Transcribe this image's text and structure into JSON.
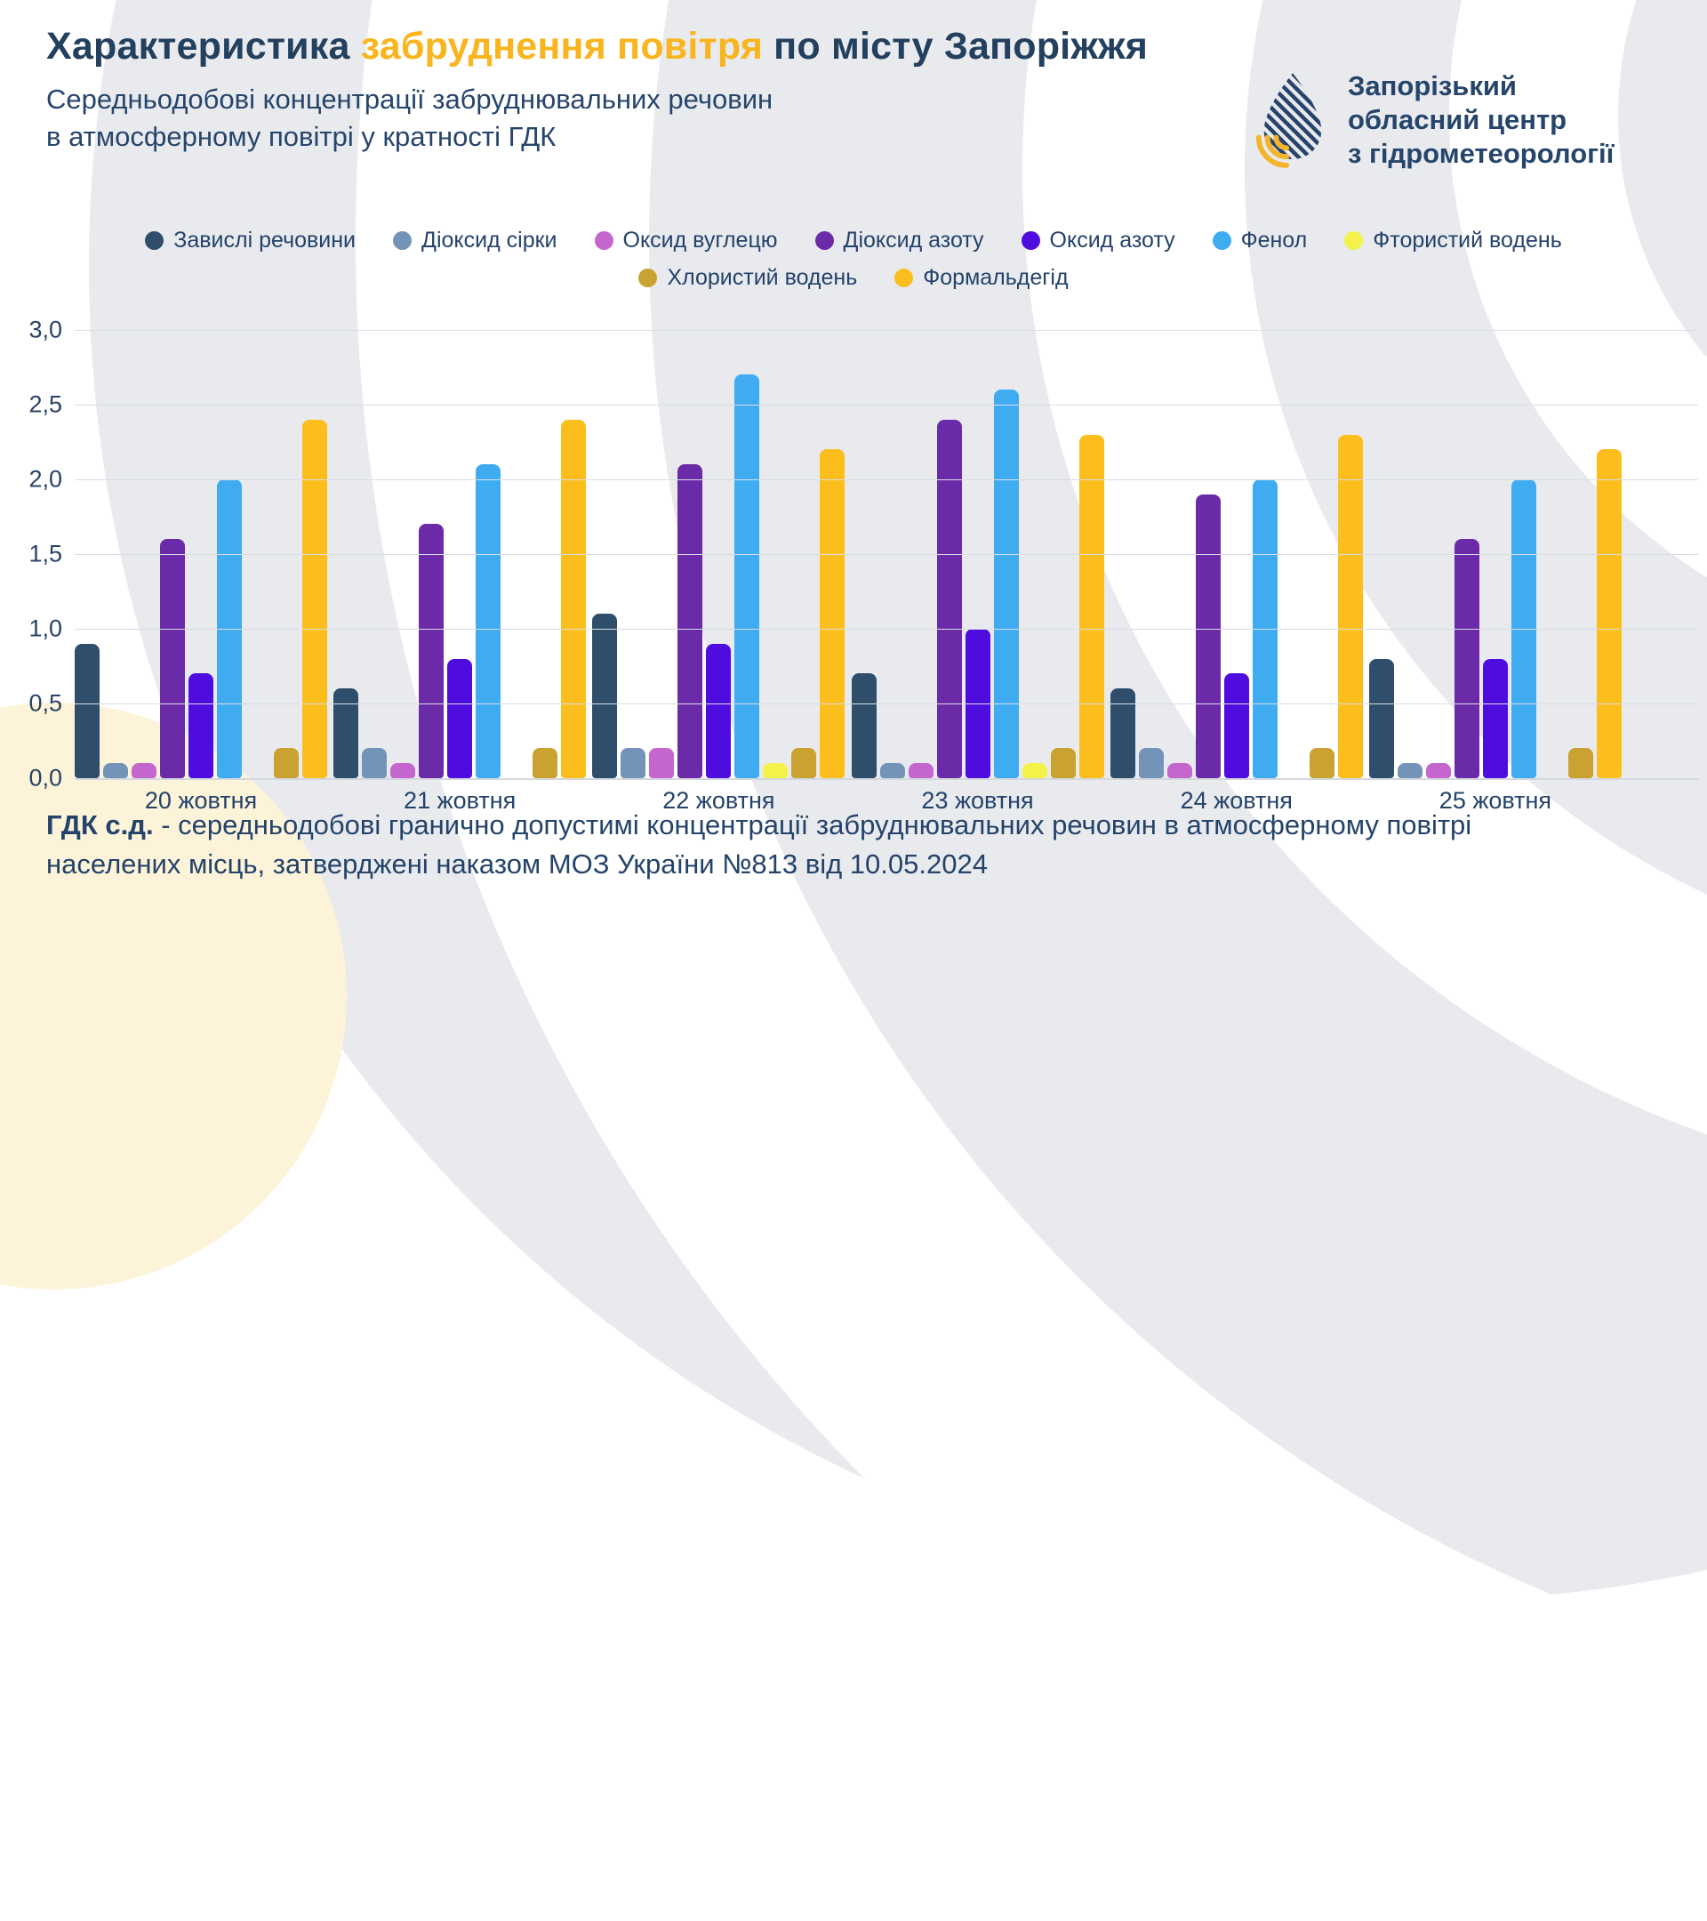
{
  "header": {
    "title_part1": "Характеристика ",
    "title_highlight": "забруднення повітря",
    "title_part2": " по місту Запоріжжя",
    "subtitle": "Середньодобові концентрації забруднювальних речовин\nв атмосферному повітрі у кратності ГДК"
  },
  "logo": {
    "text": "Запорізький\nобласний центр\nз гідрометеорології"
  },
  "footer": {
    "bold": "ГДК с.д.",
    "rest": " - середньодобові гранично допустимі концентрації забруднювальних речовин в атмосферному повітрі населених місць, затверджені наказом МОЗ України №813 від 10.05.2024"
  },
  "colors": {
    "title_highlight": "#F9B41E",
    "text_navy": "#24436A",
    "background_gray": "#E8EAEE",
    "background_yellow": "#FCF3D9"
  },
  "chart_data": {
    "type": "bar",
    "title": "Середньодобові концентрації забруднювальних речовин в атмосферному повітрі у кратності ГДК",
    "categories": [
      "20 жовтня",
      "21 жовтня",
      "22 жовтня",
      "23 жовтня",
      "24 жовтня",
      "25 жовтня"
    ],
    "series": [
      {
        "name": "Завислі речовини",
        "color": "#2F4E6B",
        "values": [
          0.9,
          0.6,
          1.1,
          0.7,
          0.6,
          0.8
        ]
      },
      {
        "name": "Діоксид сірки",
        "color": "#7493B8",
        "values": [
          0.1,
          0.2,
          0.2,
          0.1,
          0.2,
          0.1
        ]
      },
      {
        "name": "Оксид вуглецю",
        "color": "#C566CF",
        "values": [
          0.1,
          0.1,
          0.2,
          0.1,
          0.1,
          0.1
        ]
      },
      {
        "name": "Діоксид азоту",
        "color": "#6B2AA8",
        "values": [
          1.6,
          1.7,
          2.1,
          2.4,
          1.9,
          1.6
        ]
      },
      {
        "name": "Оксид азоту",
        "color": "#4F0CDF",
        "values": [
          0.7,
          0.8,
          0.9,
          1.0,
          0.7,
          0.8
        ]
      },
      {
        "name": "Фенол",
        "color": "#3FACF2",
        "values": [
          2.0,
          2.1,
          2.7,
          2.6,
          2.0,
          2.0
        ]
      },
      {
        "name": "Фтористий водень",
        "color": "#F4F24A",
        "values": [
          0,
          0,
          0.1,
          0.1,
          0,
          0
        ]
      },
      {
        "name": "Хлористий водень",
        "color": "#C9A232",
        "values": [
          0.2,
          0.2,
          0.2,
          0.2,
          0.2,
          0.2
        ]
      },
      {
        "name": "Формальдегід",
        "color": "#FBBE1D",
        "values": [
          2.4,
          2.4,
          2.2,
          2.3,
          2.3,
          2.2
        ]
      }
    ],
    "yticks": [
      "3,0",
      "2,5",
      "2,0",
      "1,5",
      "1,0",
      "0,5",
      "0,0"
    ],
    "ylim": [
      0,
      3
    ],
    "xlabel": "",
    "ylabel": "",
    "grid": true,
    "legend_position": "top",
    "legend_rows": [
      [
        0,
        1,
        2,
        3,
        4,
        5,
        6
      ],
      [
        7,
        8
      ]
    ]
  }
}
